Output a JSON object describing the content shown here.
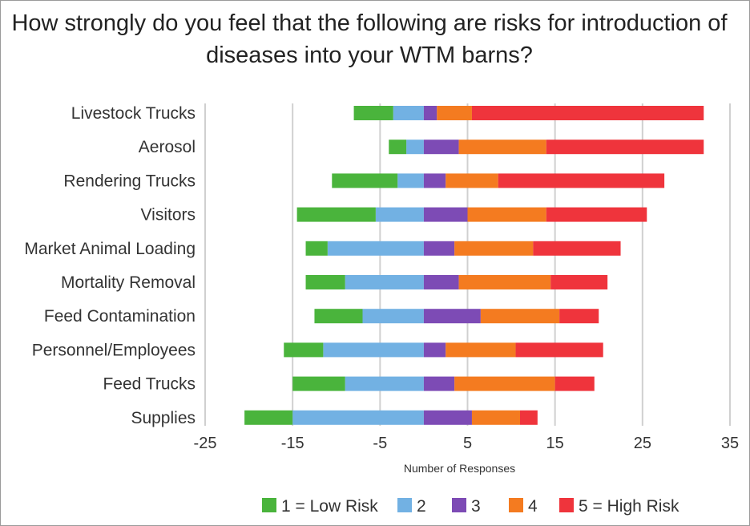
{
  "chart_data": {
    "type": "bar",
    "orientation": "horizontal",
    "stacking": "diverging",
    "title": "How strongly do you feel that the following are risks for introduction of diseases into your WTM barns?",
    "xlabel": "Number of Responses",
    "ylabel": "",
    "xlim": [
      -25,
      35
    ],
    "xticks": [
      -25,
      -15,
      -5,
      5,
      15,
      25,
      35
    ],
    "grid": "vertical",
    "legend_position": "bottom",
    "categories": [
      "Livestock Trucks",
      "Aerosol",
      "Rendering Trucks",
      "Visitors",
      "Market Animal Loading",
      "Mortality Removal",
      "Feed Contamination",
      "Personnel/Employees",
      "Feed Trucks",
      "Supplies"
    ],
    "series": [
      {
        "name": "1 = Low Risk",
        "color": "#4ab43c",
        "values": [
          -4.5,
          -2,
          -7.5,
          -9,
          -2.5,
          -4.5,
          -5.5,
          -4.5,
          -6,
          -5.5
        ]
      },
      {
        "name": "2",
        "color": "#72b1e3",
        "values": [
          -3.5,
          -2,
          -3,
          -5.5,
          -11,
          -9,
          -7,
          -11.5,
          -9,
          -15
        ]
      },
      {
        "name": "3",
        "color": "#7d4bb5",
        "values": [
          1.5,
          4,
          2.5,
          5,
          3.5,
          4,
          6.5,
          2.5,
          3.5,
          5.5
        ]
      },
      {
        "name": "4",
        "color": "#f47b20",
        "values": [
          4,
          10,
          6,
          9,
          9,
          10.5,
          9,
          8,
          11.5,
          5.5
        ]
      },
      {
        "name": "5 = High Risk",
        "color": "#ef343c",
        "values": [
          26.5,
          18,
          19,
          11.5,
          10,
          6.5,
          4.5,
          10,
          4.5,
          2
        ]
      }
    ]
  }
}
